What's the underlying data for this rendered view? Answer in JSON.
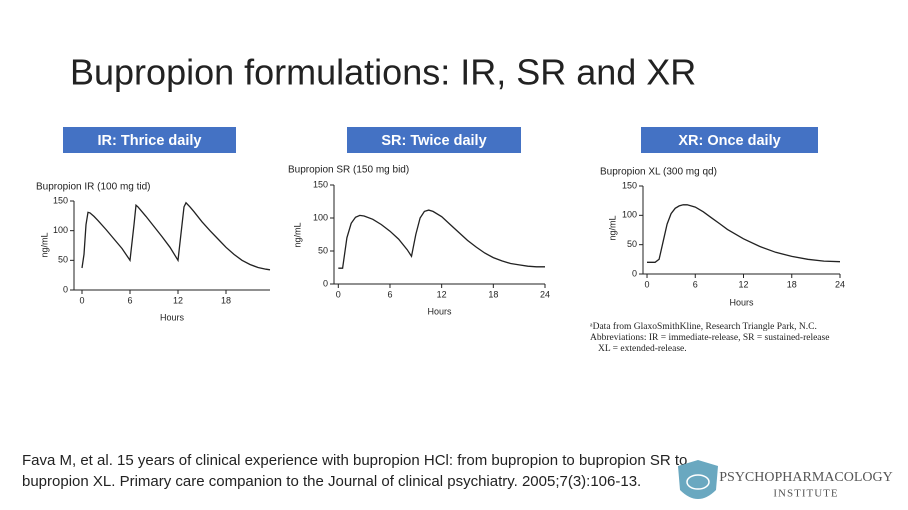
{
  "slide_title": "Bupropion formulations: IR, SR and XR",
  "chart_data": [
    {
      "type": "line",
      "heading": "IR: Thrice daily",
      "title": "Bupropion IR (100 mg tid)",
      "x_label": "Hours",
      "y_label": "ng/mL",
      "x": [
        0,
        0.25,
        0.5,
        0.75,
        1,
        1.5,
        2,
        3,
        4,
        5,
        6,
        6.5,
        6.75,
        7,
        7.5,
        8,
        9,
        10,
        11,
        12,
        12.5,
        12.75,
        13,
        13.5,
        14,
        15,
        16,
        17,
        18,
        19,
        20,
        21,
        22,
        23,
        23.5
      ],
      "series": [
        {
          "color": "#222222",
          "values": [
            37,
            60,
            110,
            131,
            130,
            124,
            117,
            102,
            86,
            70,
            50,
            110,
            143,
            140,
            132,
            124,
            107,
            90,
            72,
            50,
            110,
            140,
            147,
            140,
            132,
            115,
            100,
            86,
            72,
            60,
            50,
            43,
            38,
            35,
            34
          ]
        }
      ],
      "xlim": [
        -1,
        23.5
      ],
      "xticks": [
        0,
        6,
        12,
        18
      ],
      "ylim": [
        0,
        150
      ],
      "yticks": [
        0,
        50,
        100,
        150
      ]
    },
    {
      "type": "line",
      "heading": "SR: Twice daily",
      "title": "Bupropion SR (150 mg bid)",
      "x_label": "Hours",
      "y_label": "ng/mL",
      "x": [
        0,
        0.5,
        1,
        1.5,
        2,
        2.5,
        3,
        4,
        5,
        6,
        7,
        8,
        8.5,
        9,
        9.5,
        10,
        10.5,
        11,
        12,
        13,
        14,
        15,
        16,
        17,
        18,
        19,
        20,
        21,
        22,
        23,
        24
      ],
      "series": [
        {
          "color": "#222222",
          "values": [
            24,
            24,
            70,
            92,
            101,
            104,
            103,
            98,
            90,
            80,
            68,
            52,
            42,
            75,
            100,
            110,
            112,
            110,
            102,
            90,
            78,
            66,
            56,
            47,
            40,
            35,
            31,
            29,
            27,
            26,
            26
          ]
        }
      ],
      "xlim": [
        -0.5,
        24
      ],
      "xticks": [
        0,
        6,
        12,
        18,
        24
      ],
      "ylim": [
        0,
        150
      ],
      "yticks": [
        0,
        50,
        100,
        150
      ]
    },
    {
      "type": "line",
      "heading": "XR: Once daily",
      "title": "Bupropion XL (300 mg qd)",
      "x_label": "Hours",
      "y_label": "ng/mL",
      "x": [
        0,
        1,
        1.5,
        2,
        2.5,
        3,
        3.5,
        4,
        4.5,
        5,
        6,
        7,
        8,
        9,
        10,
        12,
        14,
        16,
        18,
        20,
        22,
        24
      ],
      "series": [
        {
          "color": "#222222",
          "values": [
            20,
            20,
            25,
            55,
            85,
            103,
            112,
            116,
            118,
            118,
            114,
            106,
            96,
            86,
            76,
            60,
            47,
            37,
            30,
            25,
            22,
            21
          ]
        }
      ],
      "xlim": [
        -0.5,
        24
      ],
      "xticks": [
        0,
        6,
        12,
        18,
        24
      ],
      "ylim": [
        0,
        150
      ],
      "yticks": [
        0,
        50,
        100,
        150
      ]
    }
  ],
  "footnote": [
    "ᵃData from GlaxoSmithKline, Research Triangle Park, N.C.",
    "Abbreviations: IR = immediate-release, SR = sustained-release",
    "XL = extended-release."
  ],
  "citation": [
    "Fava M, et al. 15 years of clinical experience with bupropion HCl: from bupropion to bupropion SR to",
    "bupropion XL. Primary care companion to the Journal of clinical psychiatry. 2005;7(3):106-13."
  ],
  "logo": {
    "line1": "PSYCHOPHARMACOLOGY",
    "line2": "INSTITUTE"
  }
}
